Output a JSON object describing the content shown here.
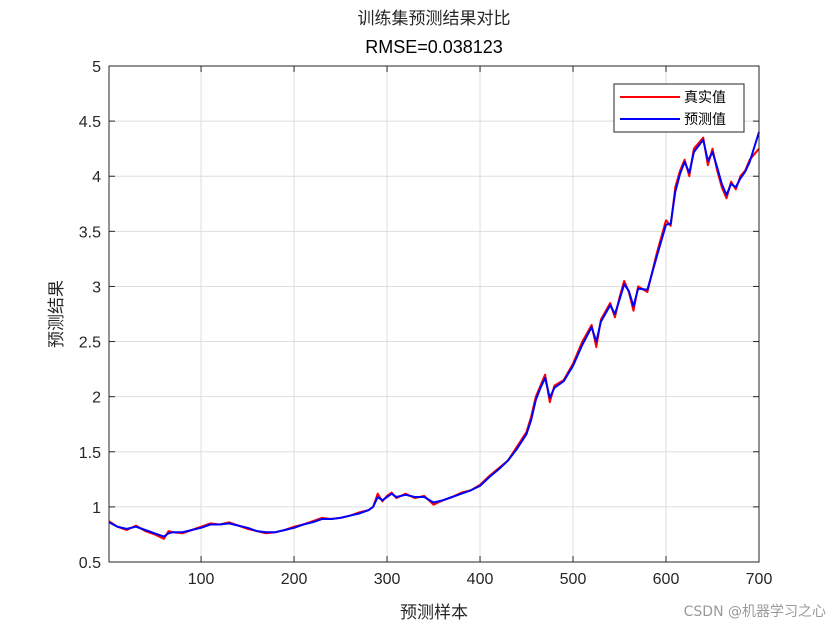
{
  "chart_data": {
    "type": "line",
    "title": "训练集预测结果对比",
    "subtitle": "RMSE=0.038123",
    "xlabel": "预测样本",
    "ylabel": "预测结果",
    "xlim": [
      1,
      700
    ],
    "ylim": [
      0.5,
      5
    ],
    "xticks": [
      "100",
      "200",
      "300",
      "400",
      "500",
      "600",
      "700"
    ],
    "yticks": [
      "0.5",
      "1",
      "1.5",
      "2",
      "2.5",
      "3",
      "3.5",
      "4",
      "4.5",
      "5"
    ],
    "grid": true,
    "legend_position": "top-right",
    "series": [
      {
        "name": "真实值",
        "color": "#ff0000",
        "x": [
          1,
          10,
          20,
          30,
          40,
          50,
          60,
          65,
          70,
          80,
          90,
          100,
          110,
          120,
          130,
          140,
          150,
          160,
          170,
          180,
          190,
          200,
          210,
          220,
          230,
          240,
          250,
          260,
          270,
          280,
          285,
          290,
          295,
          300,
          305,
          310,
          320,
          330,
          340,
          350,
          360,
          370,
          380,
          390,
          400,
          410,
          420,
          430,
          440,
          450,
          455,
          460,
          465,
          470,
          475,
          480,
          490,
          500,
          510,
          520,
          525,
          530,
          540,
          545,
          550,
          555,
          560,
          565,
          570,
          580,
          590,
          600,
          605,
          610,
          615,
          620,
          625,
          630,
          640,
          645,
          650,
          655,
          660,
          665,
          670,
          675,
          680,
          685,
          690,
          700
        ],
        "y": [
          0.87,
          0.82,
          0.79,
          0.83,
          0.78,
          0.75,
          0.71,
          0.78,
          0.77,
          0.76,
          0.79,
          0.82,
          0.85,
          0.84,
          0.86,
          0.83,
          0.8,
          0.78,
          0.76,
          0.77,
          0.79,
          0.82,
          0.84,
          0.87,
          0.9,
          0.89,
          0.9,
          0.92,
          0.95,
          0.97,
          1.0,
          1.12,
          1.05,
          1.1,
          1.13,
          1.08,
          1.12,
          1.08,
          1.1,
          1.02,
          1.06,
          1.09,
          1.13,
          1.15,
          1.2,
          1.28,
          1.35,
          1.42,
          1.55,
          1.68,
          1.82,
          2.0,
          2.1,
          2.2,
          1.95,
          2.1,
          2.15,
          2.3,
          2.5,
          2.65,
          2.45,
          2.7,
          2.85,
          2.72,
          2.9,
          3.05,
          2.95,
          2.78,
          3.0,
          2.95,
          3.3,
          3.6,
          3.55,
          3.9,
          4.05,
          4.15,
          4.0,
          4.25,
          4.35,
          4.1,
          4.25,
          4.05,
          3.9,
          3.8,
          3.95,
          3.88,
          4.0,
          4.05,
          4.15,
          4.25
        ]
      },
      {
        "name": "预测值",
        "color": "#0000ff",
        "x": [
          1,
          10,
          20,
          30,
          40,
          50,
          60,
          65,
          70,
          80,
          90,
          100,
          110,
          120,
          130,
          140,
          150,
          160,
          170,
          180,
          190,
          200,
          210,
          220,
          230,
          240,
          250,
          260,
          270,
          280,
          285,
          290,
          295,
          300,
          305,
          310,
          320,
          330,
          340,
          350,
          360,
          370,
          380,
          390,
          400,
          410,
          420,
          430,
          440,
          450,
          455,
          460,
          465,
          470,
          475,
          480,
          490,
          500,
          510,
          520,
          525,
          530,
          540,
          545,
          550,
          555,
          560,
          565,
          570,
          580,
          590,
          600,
          605,
          610,
          615,
          620,
          625,
          630,
          640,
          645,
          650,
          655,
          660,
          665,
          670,
          675,
          680,
          685,
          690,
          700
        ],
        "y": [
          0.86,
          0.82,
          0.8,
          0.82,
          0.79,
          0.76,
          0.73,
          0.76,
          0.77,
          0.77,
          0.79,
          0.81,
          0.84,
          0.84,
          0.85,
          0.83,
          0.81,
          0.78,
          0.77,
          0.77,
          0.79,
          0.81,
          0.84,
          0.86,
          0.89,
          0.89,
          0.9,
          0.92,
          0.94,
          0.97,
          1.0,
          1.09,
          1.06,
          1.09,
          1.12,
          1.09,
          1.11,
          1.09,
          1.09,
          1.04,
          1.06,
          1.09,
          1.12,
          1.15,
          1.19,
          1.27,
          1.34,
          1.42,
          1.53,
          1.66,
          1.79,
          1.97,
          2.08,
          2.17,
          1.99,
          2.08,
          2.14,
          2.28,
          2.47,
          2.63,
          2.5,
          2.68,
          2.83,
          2.75,
          2.88,
          3.02,
          2.96,
          2.82,
          2.98,
          2.97,
          3.27,
          3.56,
          3.57,
          3.86,
          4.02,
          4.13,
          4.03,
          4.22,
          4.33,
          4.14,
          4.22,
          4.08,
          3.93,
          3.83,
          3.93,
          3.9,
          3.98,
          4.04,
          4.13,
          4.4
        ]
      }
    ]
  },
  "watermark": "CSDN @机器学习之心"
}
